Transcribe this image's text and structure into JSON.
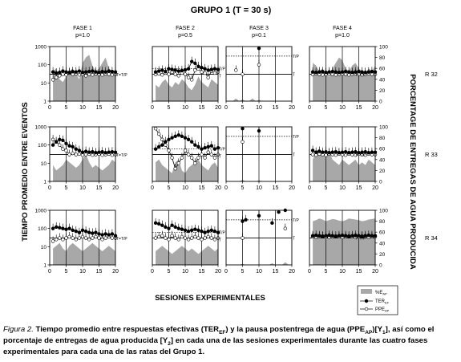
{
  "title": "GRUPO 1 (T = 30 s)",
  "phases": [
    {
      "name": "FASE 1",
      "p": "p=1.0"
    },
    {
      "name": "FASE 2",
      "p": "p=0.5"
    },
    {
      "name": "FASE 3",
      "p": "p=0.1"
    },
    {
      "name": "FASE 4",
      "p": "p=1.0"
    }
  ],
  "rats": [
    "R 32",
    "R 33",
    "R 34"
  ],
  "y_left_label": "TIEMPO PROMEDIO ENTRE EVENTOS",
  "y_right_label": "PORCENTAGE DE ENTREGAS DE AGUA PRODUCIDA",
  "x_label": "SESIONES EXPERIMENTALES",
  "left_ticks": [
    "1000",
    "100",
    "10",
    "1"
  ],
  "right_ticks": [
    "100",
    "80",
    "60",
    "40",
    "20",
    "0"
  ],
  "x_ticks": [
    "0",
    "5",
    "10",
    "15",
    "20"
  ],
  "ref_labels": {
    "tp": "T/P",
    "t": "T",
    "ttp": "T=T/P"
  },
  "legend": {
    "e": "%E",
    "e_sub": "AP",
    "ter": "TER",
    "ter_sub": "EF",
    "ppe": "PPE",
    "ppe_sub": "AP"
  },
  "caption": {
    "lead": "Figura 2.",
    "p1": " Tiempo promedio entre respuestas efectivas (TER",
    "s1": "EF",
    "p2": ") y la pausa postentrega de agua (PPE",
    "s2": "AP",
    "p3": ")[Y",
    "s3": "1",
    "p4": "], así como el porcentaje de entregas de agua producida [Y",
    "s4": "2",
    "p5": "] en cada una de las sesiones experimentales durante las cuatro fases experimentales para cada una de las ratas del Grupo 1."
  },
  "colors": {
    "area": "#a8a8a8",
    "ter": "#000000",
    "ppe": "#ffffff",
    "refline": "#000000"
  },
  "chart_data": {
    "type": "line",
    "title": "GRUPO 1 (T = 30 s)",
    "xlabel": "SESIONES EXPERIMENTALES",
    "ylabel_left": "TIEMPO PROMEDIO ENTRE EVENTOS",
    "ylabel_right": "PORCENTAGE DE ENTREGAS DE AGUA PRODUCIDA",
    "x": [
      1,
      2,
      3,
      4,
      5,
      6,
      7,
      8,
      9,
      10,
      11,
      12,
      13,
      14,
      15,
      16,
      17,
      18,
      19,
      20
    ],
    "xlim": [
      0,
      20
    ],
    "ylim_left": [
      1,
      1000
    ],
    "yscale_left": "log",
    "ylim_right": [
      0,
      100
    ],
    "reference": {
      "T": 30,
      "T/P_phase1": 30,
      "T/P_phase2": 60,
      "T/P_phase3": 300,
      "T/P_phase4": 30
    },
    "panels": [
      {
        "rat": "R 32",
        "phase": "FASE 1",
        "p": 1.0,
        "pctE": [
          55,
          60,
          40,
          35,
          45,
          55,
          60,
          50,
          40,
          70,
          80,
          85,
          65,
          55,
          60,
          70,
          80,
          60,
          55,
          50
        ],
        "TER": [
          40,
          35,
          38,
          45,
          40,
          38,
          42,
          40,
          45,
          38,
          40,
          42,
          45,
          40,
          38,
          42,
          40,
          45,
          42,
          40
        ],
        "PPE": [
          15,
          20,
          25,
          30,
          28,
          35,
          30,
          32,
          28,
          30,
          25,
          30,
          28,
          32,
          30,
          28,
          32,
          30,
          28,
          30
        ]
      },
      {
        "rat": "R 32",
        "phase": "FASE 2",
        "p": 0.5,
        "pctE": [
          30,
          25,
          35,
          40,
          30,
          25,
          35,
          30,
          40,
          35,
          25,
          20,
          30,
          45,
          35,
          30,
          25,
          40,
          35,
          30
        ],
        "TER": [
          40,
          45,
          50,
          42,
          60,
          55,
          50,
          45,
          48,
          52,
          60,
          150,
          120,
          80,
          70,
          60,
          50,
          55,
          60,
          55
        ],
        "PPE": [
          30,
          32,
          28,
          35,
          30,
          40,
          30,
          25,
          35,
          30,
          20,
          15,
          50,
          60,
          40,
          35,
          20,
          45,
          35,
          40
        ]
      },
      {
        "rat": "R 32",
        "phase": "FASE 3",
        "p": 0.1,
        "pctE": [
          0,
          0,
          5,
          0,
          3,
          0,
          0,
          5,
          0,
          2,
          0,
          0,
          0,
          0,
          0,
          0,
          0,
          0,
          0,
          0
        ],
        "TER": [
          null,
          null,
          null,
          null,
          null,
          null,
          null,
          null,
          null,
          800,
          null,
          null,
          null,
          null,
          null,
          null,
          null,
          null,
          null,
          null
        ],
        "PPE": [
          null,
          null,
          50,
          null,
          30,
          null,
          null,
          null,
          null,
          100,
          null,
          null,
          null,
          null,
          null,
          null,
          null,
          null,
          null,
          null
        ]
      },
      {
        "rat": "R 32",
        "phase": "FASE 4",
        "p": 1.0,
        "pctE": [
          70,
          65,
          55,
          60,
          50,
          45,
          60,
          70,
          80,
          75,
          60,
          55,
          65,
          70,
          60,
          55,
          50,
          60,
          55,
          65
        ],
        "TER": [
          40,
          38,
          40,
          42,
          38,
          40,
          42,
          40,
          38,
          40,
          42,
          40,
          38,
          40,
          42,
          40,
          38,
          40,
          42,
          40
        ],
        "PPE": [
          30,
          32,
          30,
          28,
          30,
          32,
          30,
          28,
          30,
          32,
          30,
          28,
          30,
          32,
          30,
          28,
          30,
          32,
          30,
          30
        ]
      },
      {
        "rat": "R 33",
        "phase": "FASE 1",
        "p": 1.0,
        "pctE": [
          30,
          20,
          25,
          30,
          40,
          35,
          30,
          25,
          30,
          40,
          50,
          35,
          25,
          30,
          25,
          20,
          25,
          30,
          40,
          35
        ],
        "TER": [
          100,
          150,
          200,
          180,
          120,
          90,
          80,
          60,
          50,
          40,
          45,
          40,
          42,
          38,
          40,
          42,
          38,
          40,
          42,
          40
        ],
        "PPE": [
          200,
          150,
          100,
          60,
          50,
          30,
          35,
          30,
          32,
          28,
          30,
          32,
          28,
          30,
          32,
          28,
          30,
          32,
          28,
          30
        ]
      },
      {
        "rat": "R 33",
        "phase": "FASE 2",
        "p": 0.5,
        "pctE": [
          35,
          40,
          30,
          25,
          20,
          15,
          35,
          40,
          20,
          15,
          25,
          30,
          35,
          40,
          30,
          25,
          20,
          30,
          35,
          25
        ],
        "TER": [
          60,
          80,
          100,
          150,
          200,
          250,
          300,
          350,
          300,
          250,
          200,
          150,
          100,
          80,
          60,
          70,
          80,
          90,
          60,
          70
        ],
        "PPE": [
          800,
          400,
          200,
          100,
          50,
          20,
          5,
          10,
          20,
          50,
          30,
          20,
          10,
          20,
          30,
          20,
          40,
          30,
          20,
          30
        ]
      },
      {
        "rat": "R 33",
        "phase": "FASE 3",
        "p": 0.1,
        "pctE": [
          0,
          0,
          0,
          0,
          3,
          0,
          0,
          0,
          0,
          2,
          0,
          0,
          0,
          0,
          0,
          0,
          0,
          0,
          0,
          0
        ],
        "TER": [
          null,
          null,
          null,
          null,
          800,
          null,
          null,
          null,
          null,
          600,
          null,
          null,
          null,
          null,
          null,
          null,
          null,
          null,
          null,
          null
        ],
        "PPE": [
          null,
          null,
          null,
          null,
          150,
          null,
          null,
          null,
          null,
          null,
          null,
          null,
          null,
          null,
          null,
          null,
          null,
          null,
          null,
          null
        ]
      },
      {
        "rat": "R 33",
        "phase": "FASE 4",
        "p": 1.0,
        "pctE": [
          40,
          55,
          60,
          45,
          50,
          55,
          40,
          35,
          30,
          40,
          35,
          30,
          35,
          40,
          30,
          35,
          30,
          40,
          35,
          30
        ],
        "TER": [
          50,
          40,
          45,
          40,
          42,
          38,
          40,
          42,
          38,
          40,
          42,
          38,
          40,
          42,
          38,
          40,
          42,
          38,
          40,
          40
        ],
        "PPE": [
          30,
          28,
          32,
          30,
          28,
          32,
          30,
          28,
          32,
          30,
          28,
          32,
          30,
          28,
          32,
          30,
          28,
          32,
          30,
          30
        ]
      },
      {
        "rat": "R 34",
        "phase": "FASE 1",
        "p": 1.0,
        "pctE": [
          30,
          35,
          40,
          30,
          25,
          35,
          40,
          35,
          30,
          25,
          30,
          35,
          40,
          35,
          30,
          25,
          30,
          35,
          30,
          25
        ],
        "TER": [
          100,
          120,
          110,
          100,
          90,
          100,
          80,
          70,
          60,
          80,
          70,
          60,
          55,
          60,
          50,
          45,
          50,
          45,
          50,
          40
        ],
        "PPE": [
          20,
          25,
          30,
          25,
          30,
          35,
          30,
          25,
          30,
          35,
          30,
          25,
          30,
          35,
          30,
          25,
          30,
          35,
          30,
          30
        ]
      },
      {
        "rat": "R 34",
        "phase": "FASE 2",
        "p": 0.5,
        "pctE": [
          25,
          30,
          35,
          30,
          25,
          20,
          25,
          30,
          35,
          30,
          25,
          30,
          25,
          20,
          25,
          30,
          35,
          30,
          25,
          30
        ],
        "TER": [
          200,
          180,
          150,
          120,
          100,
          150,
          120,
          100,
          90,
          80,
          70,
          80,
          90,
          80,
          70,
          60,
          70,
          80,
          70,
          60
        ],
        "PPE": [
          30,
          35,
          40,
          30,
          25,
          40,
          30,
          25,
          35,
          30,
          25,
          30,
          35,
          30,
          25,
          30,
          35,
          30,
          25,
          30
        ]
      },
      {
        "rat": "R 34",
        "phase": "FASE 3",
        "p": 0.1,
        "pctE": [
          0,
          0,
          0,
          0,
          2,
          0,
          0,
          0,
          0,
          0,
          0,
          0,
          0,
          3,
          0,
          0,
          0,
          5,
          0,
          0
        ],
        "TER": [
          null,
          null,
          null,
          null,
          250,
          300,
          null,
          null,
          null,
          500,
          null,
          null,
          null,
          200,
          null,
          800,
          null,
          1000,
          null,
          null
        ],
        "PPE": [
          null,
          null,
          null,
          null,
          30,
          null,
          null,
          null,
          null,
          null,
          null,
          null,
          null,
          null,
          null,
          null,
          null,
          100,
          null,
          null
        ]
      },
      {
        "rat": "R 34",
        "phase": "FASE 4",
        "p": 1.0,
        "pctE": [
          80,
          82,
          85,
          83,
          80,
          82,
          84,
          83,
          81,
          80,
          82,
          85,
          84,
          83,
          82,
          80,
          81,
          83,
          84,
          85
        ],
        "TER": [
          40,
          42,
          40,
          38,
          40,
          42,
          40,
          38,
          40,
          42,
          40,
          38,
          40,
          42,
          40,
          38,
          40,
          42,
          40,
          40
        ],
        "PPE": [
          35,
          33,
          35,
          37,
          35,
          33,
          35,
          37,
          35,
          33,
          35,
          37,
          35,
          33,
          35,
          37,
          35,
          33,
          35,
          35
        ]
      }
    ]
  }
}
